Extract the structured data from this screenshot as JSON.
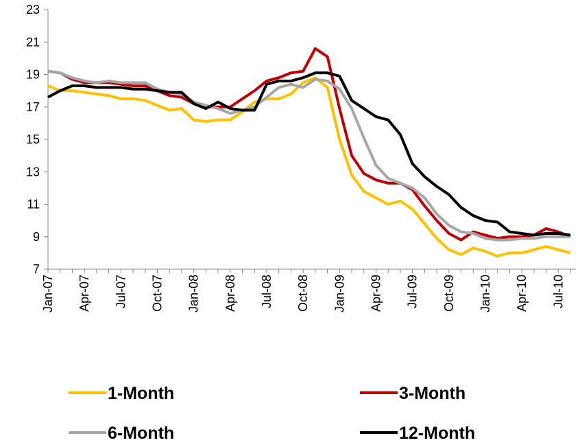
{
  "chart_data": {
    "type": "line",
    "categories": [
      "Jan-07",
      null,
      null,
      "Apr-07",
      null,
      null,
      "Jul-07",
      null,
      null,
      "Oct-07",
      null,
      null,
      "Jan-08",
      null,
      null,
      "Apr-08",
      null,
      null,
      "Jul-08",
      null,
      null,
      "Oct-08",
      null,
      null,
      "Jan-09",
      null,
      null,
      "Apr-09",
      null,
      null,
      "Jul-09",
      null,
      null,
      "Oct-09",
      null,
      null,
      "Jan-10",
      null,
      null,
      "Apr-10",
      null,
      null,
      "Jul-10",
      null
    ],
    "series": [
      {
        "name": "1-Month",
        "color": "#ffc000",
        "values": [
          18.3,
          18.0,
          18.0,
          17.9,
          17.8,
          17.7,
          17.5,
          17.5,
          17.4,
          17.1,
          16.8,
          16.9,
          16.2,
          16.1,
          16.2,
          16.2,
          16.7,
          17.3,
          17.5,
          17.5,
          17.8,
          18.5,
          18.8,
          18.2,
          15.0,
          12.8,
          11.8,
          11.4,
          11.0,
          11.2,
          10.7,
          9.8,
          8.9,
          8.2,
          7.9,
          8.3,
          8.1,
          7.8,
          8.0,
          8.0,
          8.2,
          8.4,
          8.2,
          8.0
        ]
      },
      {
        "name": "3-Month",
        "color": "#c00000",
        "values": [
          19.2,
          19.1,
          18.7,
          18.5,
          18.5,
          18.5,
          18.4,
          18.3,
          18.3,
          18.0,
          17.7,
          17.6,
          17.2,
          17.0,
          17.0,
          17.0,
          17.5,
          18.0,
          18.6,
          18.8,
          19.1,
          19.2,
          20.6,
          20.1,
          16.9,
          14.0,
          12.9,
          12.5,
          12.3,
          12.3,
          11.9,
          10.9,
          10.0,
          9.2,
          8.8,
          9.3,
          9.1,
          8.9,
          9.0,
          9.0,
          9.1,
          9.5,
          9.3,
          9.0
        ]
      },
      {
        "name": "6-Month",
        "color": "#a6a6a6",
        "values": [
          19.2,
          19.1,
          18.8,
          18.6,
          18.5,
          18.6,
          18.5,
          18.5,
          18.5,
          18.1,
          17.9,
          17.8,
          17.3,
          17.1,
          16.9,
          16.6,
          16.8,
          17.0,
          17.6,
          18.2,
          18.4,
          18.2,
          18.7,
          18.6,
          18.1,
          16.9,
          15.1,
          13.4,
          12.6,
          12.3,
          12.0,
          11.4,
          10.4,
          9.7,
          9.3,
          9.2,
          8.9,
          8.8,
          8.8,
          8.9,
          8.9,
          9.0,
          9.0,
          9.0
        ]
      },
      {
        "name": "12-Month",
        "color": "#000000",
        "values": [
          17.6,
          18.0,
          18.3,
          18.3,
          18.2,
          18.2,
          18.2,
          18.1,
          18.1,
          18.0,
          17.9,
          17.9,
          17.2,
          16.9,
          17.3,
          16.9,
          16.8,
          16.8,
          18.4,
          18.6,
          18.6,
          18.8,
          19.1,
          19.1,
          18.9,
          17.4,
          16.9,
          16.4,
          16.2,
          15.3,
          13.5,
          12.7,
          12.1,
          11.6,
          10.8,
          10.3,
          10.0,
          9.9,
          9.3,
          9.2,
          9.1,
          9.2,
          9.2,
          9.1
        ]
      }
    ],
    "ylim": [
      7,
      23
    ],
    "yticks": [
      7,
      9,
      11,
      13,
      15,
      17,
      19,
      21,
      23
    ],
    "grid": false,
    "legend": "bottom"
  }
}
